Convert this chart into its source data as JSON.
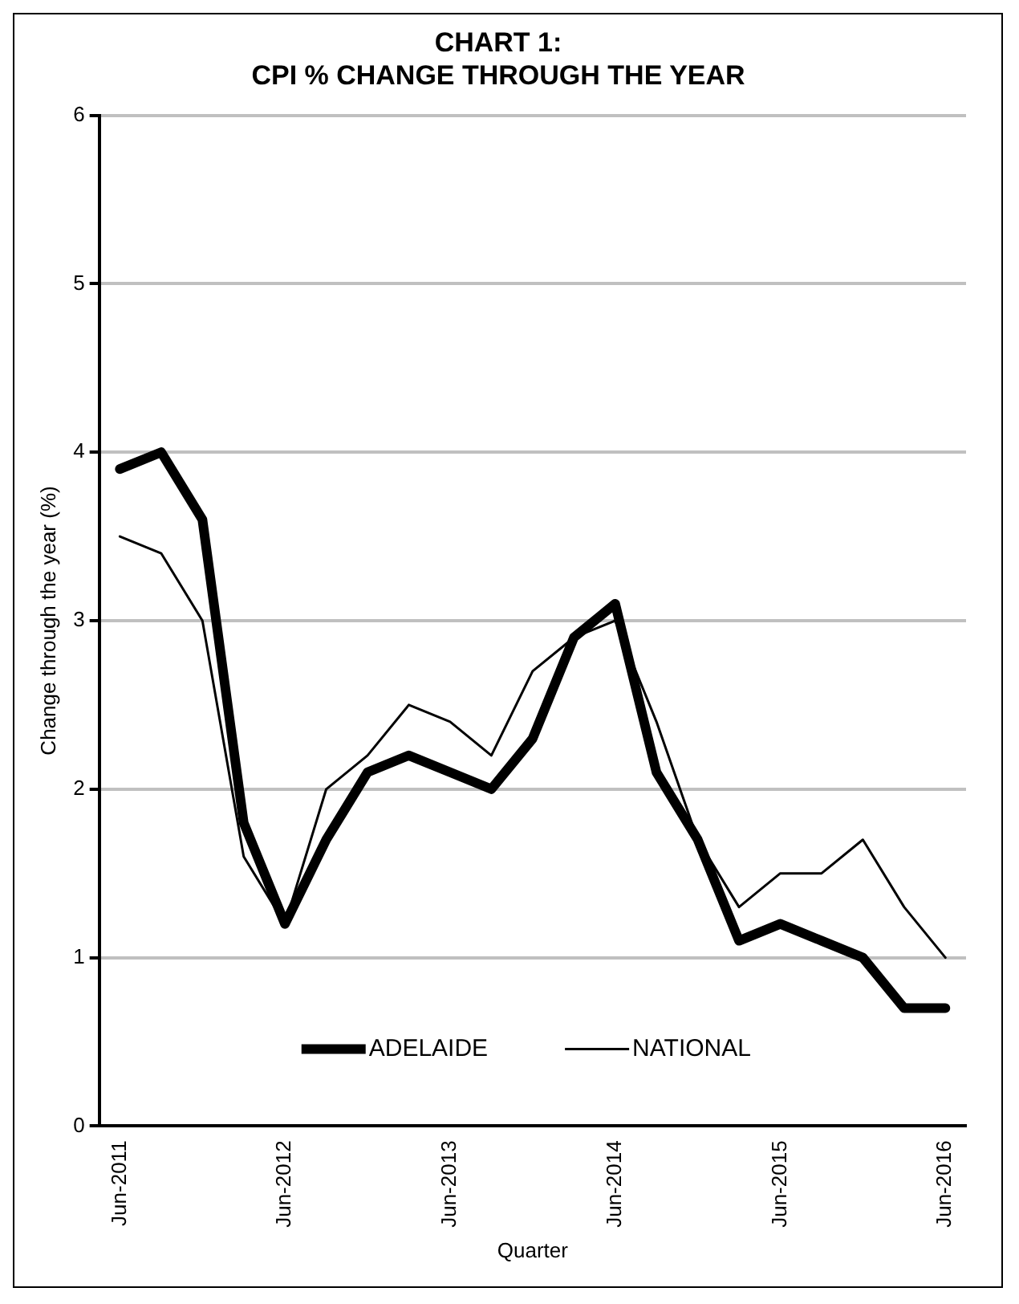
{
  "chart_data": {
    "type": "line",
    "title": [
      "CHART 1:",
      "CPI % CHANGE THROUGH THE YEAR"
    ],
    "xlabel": "Quarter",
    "ylabel": "Change through the year (%)",
    "categories": [
      "Jun-2011",
      null,
      null,
      null,
      "Jun-2012",
      null,
      null,
      null,
      "Jun-2013",
      null,
      null,
      null,
      "Jun-2014",
      null,
      null,
      null,
      "Jun-2015",
      null,
      null,
      null,
      "Jun-2016"
    ],
    "series": [
      {
        "name": "ADELAIDE",
        "color": "#000000",
        "values": [
          3.9,
          4.0,
          3.6,
          1.8,
          1.2,
          1.7,
          2.1,
          2.2,
          2.1,
          2.0,
          2.3,
          2.9,
          3.1,
          2.1,
          1.7,
          1.1,
          1.2,
          1.1,
          1.0,
          0.7,
          0.7
        ]
      },
      {
        "name": "NATIONAL",
        "color": "#000000",
        "values": [
          3.5,
          3.4,
          3.0,
          1.6,
          1.2,
          2.0,
          2.2,
          2.5,
          2.4,
          2.2,
          2.7,
          2.9,
          3.0,
          2.4,
          1.7,
          1.3,
          1.5,
          1.5,
          1.7,
          1.3,
          1.0
        ]
      }
    ],
    "ylim": [
      0,
      6
    ],
    "yticks": [
      0,
      1,
      2,
      3,
      4,
      5,
      6
    ],
    "grid": "y",
    "legend": "bottom",
    "marker": "none",
    "line_style": "solid"
  }
}
